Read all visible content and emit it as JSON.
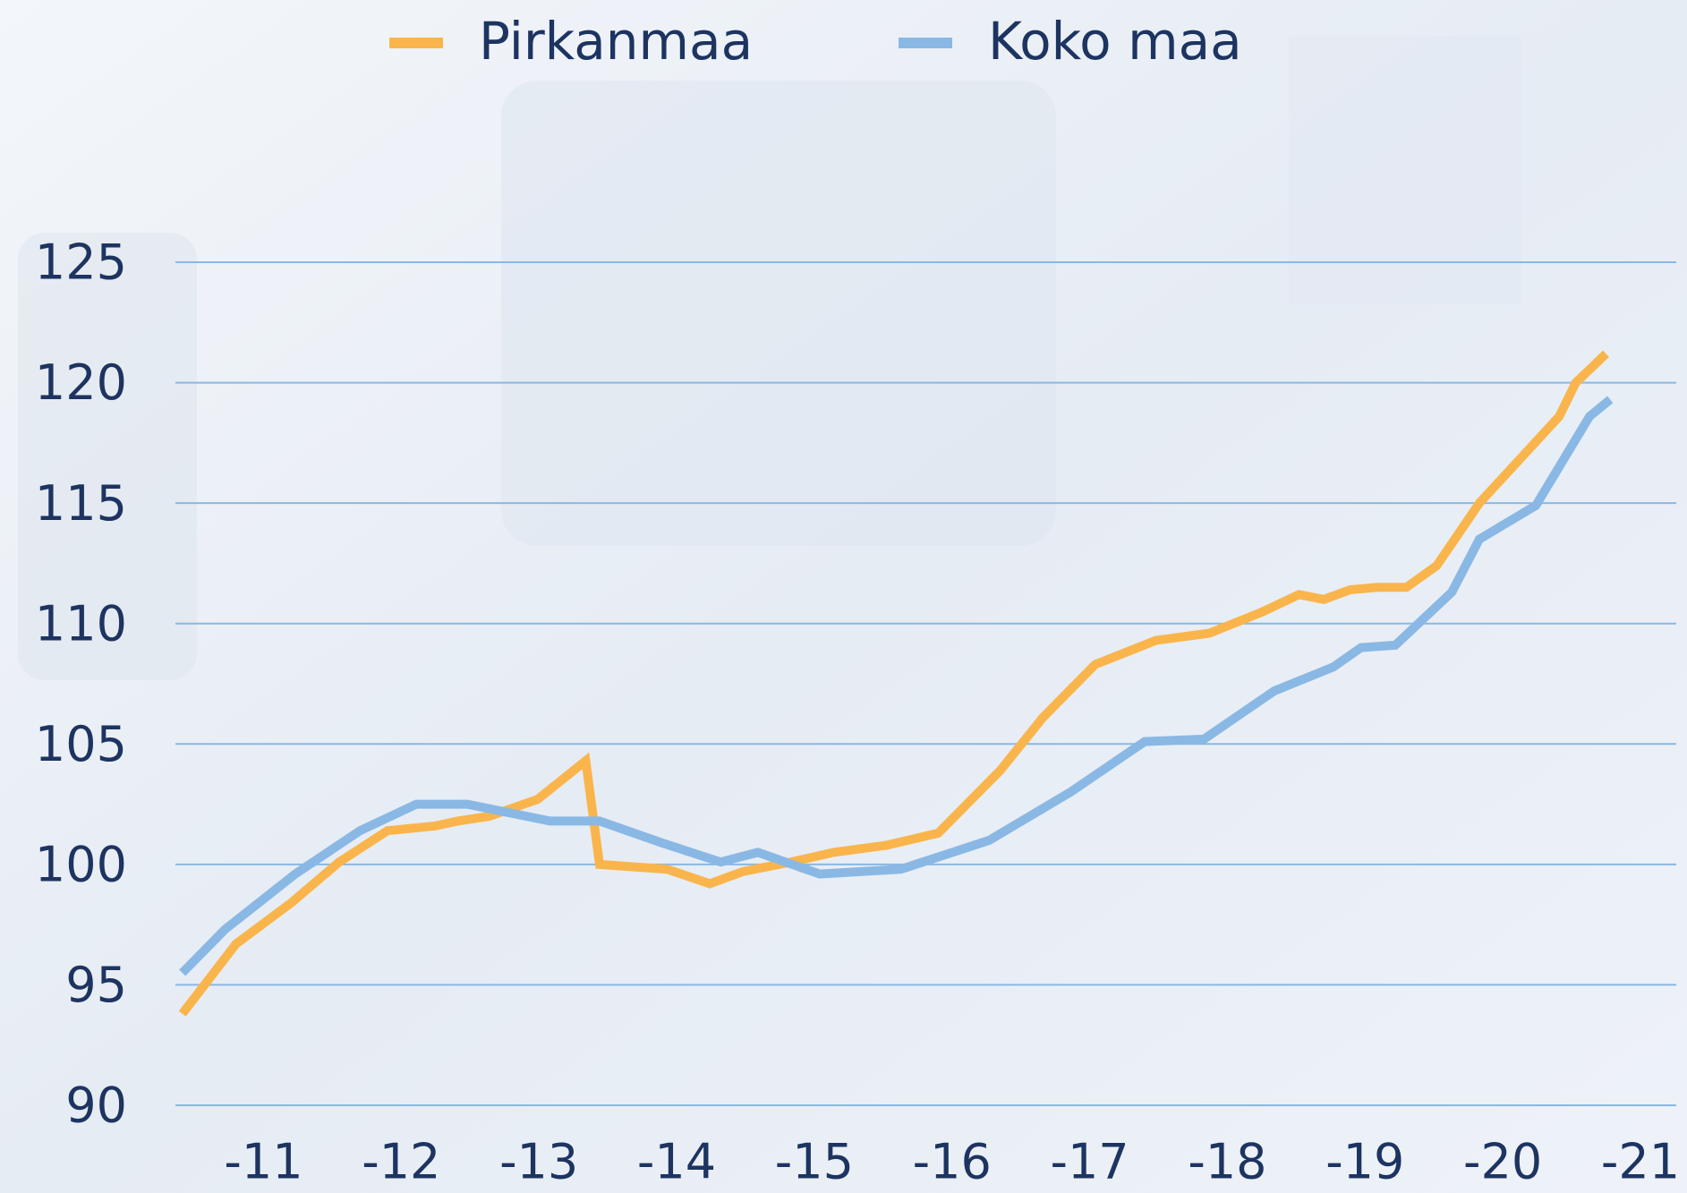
{
  "chart_data": {
    "type": "line",
    "legend": "top",
    "grid": true,
    "grid_color": "#8ab8e4",
    "xlim": [
      10.36,
      21.26
    ],
    "xticks": [
      {
        "value": 11,
        "label": "-11"
      },
      {
        "value": 12,
        "label": "-12"
      },
      {
        "value": 13,
        "label": "-13"
      },
      {
        "value": 14,
        "label": "-14"
      },
      {
        "value": 15,
        "label": "-15"
      },
      {
        "value": 16,
        "label": "-16"
      },
      {
        "value": 17,
        "label": "-17"
      },
      {
        "value": 18,
        "label": "-18"
      },
      {
        "value": 19,
        "label": "-19"
      },
      {
        "value": 20,
        "label": "-20"
      },
      {
        "value": 21,
        "label": "-21"
      }
    ],
    "ylim": [
      90,
      125
    ],
    "yticks": [
      90,
      95,
      100,
      105,
      110,
      115,
      120,
      125
    ],
    "series": [
      {
        "name": "Pirkanmaa",
        "color": "#f9b54c",
        "x": [
          10.41,
          10.8,
          11.2,
          11.55,
          11.9,
          12.25,
          12.41,
          12.64,
          12.99,
          13.34,
          13.44,
          13.93,
          14.24,
          14.48,
          14.83,
          15.14,
          15.53,
          15.9,
          16.35,
          16.66,
          17.04,
          17.48,
          17.87,
          18.26,
          18.52,
          18.7,
          18.89,
          19.09,
          19.3,
          19.52,
          19.83,
          20.41,
          20.53,
          20.75
        ],
        "values": [
          93.8,
          96.7,
          98.4,
          100.1,
          101.4,
          101.6,
          101.8,
          102.0,
          102.7,
          104.3,
          100.0,
          99.8,
          99.2,
          99.7,
          100.1,
          100.5,
          100.8,
          101.3,
          103.9,
          106.1,
          108.3,
          109.3,
          109.6,
          110.5,
          111.2,
          111.0,
          111.4,
          111.5,
          111.5,
          112.4,
          115.0,
          118.6,
          120.0,
          121.2
        ]
      },
      {
        "name": "Koko maa",
        "color": "#8ab8e4",
        "x": [
          10.41,
          10.72,
          11.23,
          11.7,
          12.11,
          12.48,
          13.08,
          13.44,
          13.89,
          14.32,
          14.59,
          15.04,
          15.63,
          16.27,
          16.86,
          17.4,
          17.83,
          18.34,
          18.77,
          18.97,
          19.22,
          19.63,
          19.83,
          20.24,
          20.63,
          20.78
        ],
        "values": [
          95.5,
          97.3,
          99.6,
          101.4,
          102.5,
          102.5,
          101.8,
          101.8,
          100.9,
          100.1,
          100.5,
          99.6,
          99.8,
          101.0,
          103.0,
          105.1,
          105.2,
          107.2,
          108.2,
          109.0,
          109.1,
          111.3,
          113.5,
          114.9,
          118.6,
          119.3
        ]
      }
    ]
  }
}
